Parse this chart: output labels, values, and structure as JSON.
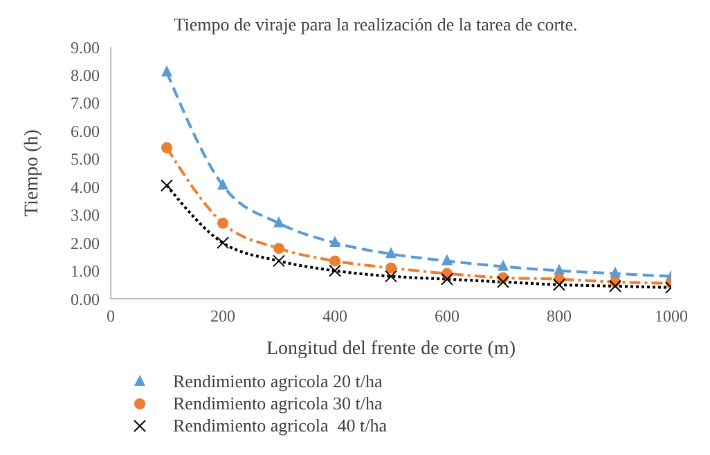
{
  "chart_data": {
    "type": "line",
    "title": "Tiempo de viraje para la realización de la tarea de corte.",
    "xlabel": "Longitud del frente de corte (m)",
    "ylabel": "Tiempo (h)",
    "x": [
      100,
      200,
      300,
      400,
      500,
      600,
      700,
      800,
      900,
      1000
    ],
    "series": [
      {
        "name": "Rendimiento agricola 20 t/ha",
        "color": "#5b9bd5",
        "marker": "triangle",
        "line_style": "dashed",
        "values": [
          8.1,
          4.05,
          2.7,
          2.0,
          1.6,
          1.35,
          1.15,
          1.0,
          0.9,
          0.8
        ]
      },
      {
        "name": "Rendimiento agricola 30 t/ha",
        "color": "#ed7d31",
        "marker": "circle",
        "line_style": "dashdot",
        "values": [
          5.4,
          2.7,
          1.8,
          1.35,
          1.1,
          0.9,
          0.75,
          0.7,
          0.6,
          0.55
        ]
      },
      {
        "name": "Rendimiento agricola  40 t/ha",
        "color": "#000000",
        "marker": "cross",
        "line_style": "dotted",
        "values": [
          4.05,
          2.0,
          1.35,
          1.0,
          0.8,
          0.7,
          0.6,
          0.5,
          0.45,
          0.4
        ]
      }
    ],
    "xlim": [
      0,
      1000
    ],
    "xticks": [
      0,
      200,
      400,
      600,
      800,
      1000
    ],
    "ylim": [
      0,
      9
    ],
    "yticks": [
      {
        "value": 0,
        "label": "0.00"
      },
      {
        "value": 1,
        "label": "1.00"
      },
      {
        "value": 2,
        "label": "2.00"
      },
      {
        "value": 3,
        "label": "3.00"
      },
      {
        "value": 4,
        "label": "4.00"
      },
      {
        "value": 5,
        "label": "5.00"
      },
      {
        "value": 6,
        "label": "6.00"
      },
      {
        "value": 7,
        "label": "7.00"
      },
      {
        "value": 8,
        "label": "8.00"
      },
      {
        "value": 9,
        "label": "9.00"
      }
    ],
    "grid": false,
    "legend": "bottom"
  }
}
